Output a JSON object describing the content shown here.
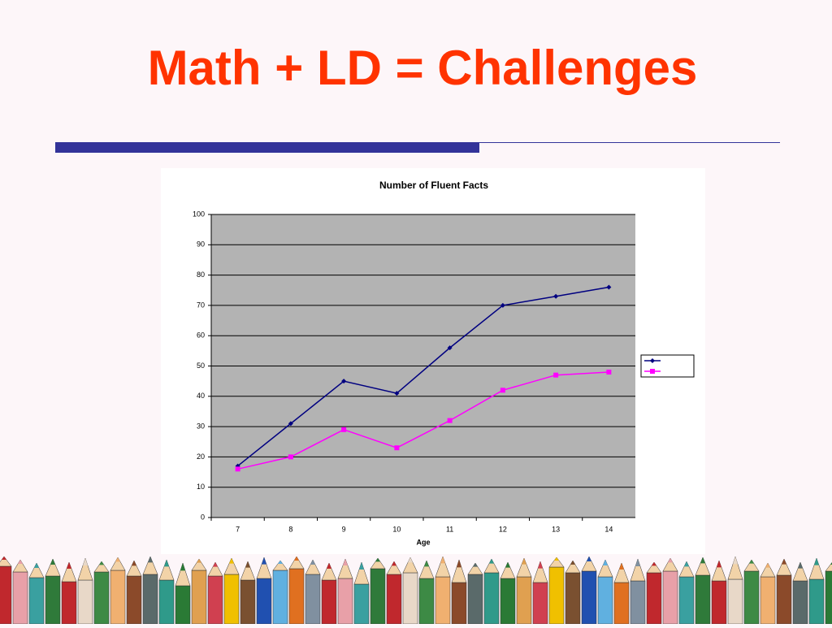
{
  "slide": {
    "title": "Math + LD = Challenges"
  },
  "chart_data": {
    "type": "line",
    "title": "Number of Fluent Facts",
    "x_label": "Age",
    "categories": [
      7,
      8,
      9,
      10,
      11,
      12,
      13,
      14
    ],
    "series": [
      {
        "color": "#000080",
        "marker": "diamond",
        "values": [
          17,
          31,
          45,
          41,
          56,
          70,
          73,
          76
        ]
      },
      {
        "color": "#ff00ff",
        "marker": "square",
        "values": [
          16,
          20,
          29,
          23,
          32,
          42,
          47,
          48
        ]
      }
    ],
    "ylim": [
      0,
      100
    ],
    "yticks": [
      0,
      10,
      20,
      30,
      40,
      50,
      60,
      70,
      80,
      90,
      100
    ],
    "grid": true,
    "legend": "right"
  }
}
